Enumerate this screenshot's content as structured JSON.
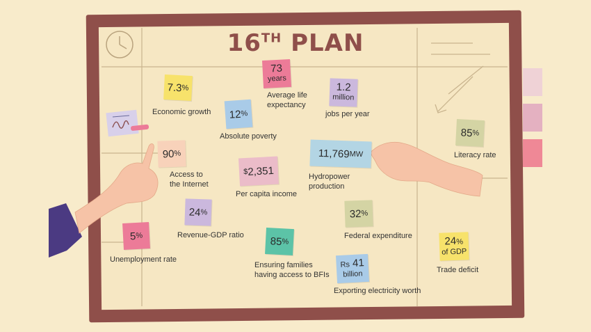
{
  "title": {
    "main": "16",
    "sup": "TH",
    "rest": " PLAN"
  },
  "stats": [
    {
      "id": "economic-growth",
      "value": "7.3",
      "unit": "%",
      "label": "Economic growth",
      "color": "#f7e26b"
    },
    {
      "id": "life-expectancy",
      "value": "73",
      "unit": "years",
      "label": "Average life\nexpectancy",
      "color": "#ec7b98"
    },
    {
      "id": "jobs",
      "value": "1.2",
      "unit": "million",
      "label": "jobs per year",
      "color": "#cbb8dd"
    },
    {
      "id": "absolute-poverty",
      "value": "12",
      "unit": "%",
      "label": "Absolute poverty",
      "color": "#a9cbe8"
    },
    {
      "id": "literacy-rate",
      "value": "85",
      "unit": "%",
      "label": "Literacy rate",
      "color": "#d4d4a4"
    },
    {
      "id": "internet-access",
      "value": "90",
      "unit": "%",
      "label": "Access to\nthe Internet",
      "color": "#f8d2ba"
    },
    {
      "id": "per-capita-income",
      "value": "2,351",
      "prefix": "$",
      "label": "Per capita income",
      "color": "#ebbcc9"
    },
    {
      "id": "hydropower",
      "value": "11,769",
      "unit": "MW",
      "label": "Hydropower\nproduction",
      "color": "#b3d5e4"
    },
    {
      "id": "revenue-gdp",
      "value": "24",
      "unit": "%",
      "label": "Revenue-GDP ratio",
      "color": "#cbb8dd"
    },
    {
      "id": "federal-expenditure",
      "value": "32",
      "unit": "%",
      "label": "Federal expenditure",
      "color": "#d4d4a4"
    },
    {
      "id": "unemployment",
      "value": "5",
      "unit": "%",
      "label": "Unemployment rate",
      "color": "#ec7b98"
    },
    {
      "id": "bfi-access",
      "value": "85",
      "unit": "%",
      "label": "Ensuring families\nhaving access to BFIs",
      "color": "#5cc3a7"
    },
    {
      "id": "electricity-export",
      "value": "41",
      "prefix": "Rs",
      "unit": "billion",
      "label": "Exporting electricity worth",
      "color": "#a9cbe8"
    },
    {
      "id": "trade-deficit",
      "value": "24",
      "unit": "%",
      "unit2": "of GDP",
      "label": "Trade deficit",
      "color": "#f7e26b"
    }
  ],
  "tabs": [
    "#efd2d6",
    "#e4b1c1",
    "#ef8896"
  ]
}
